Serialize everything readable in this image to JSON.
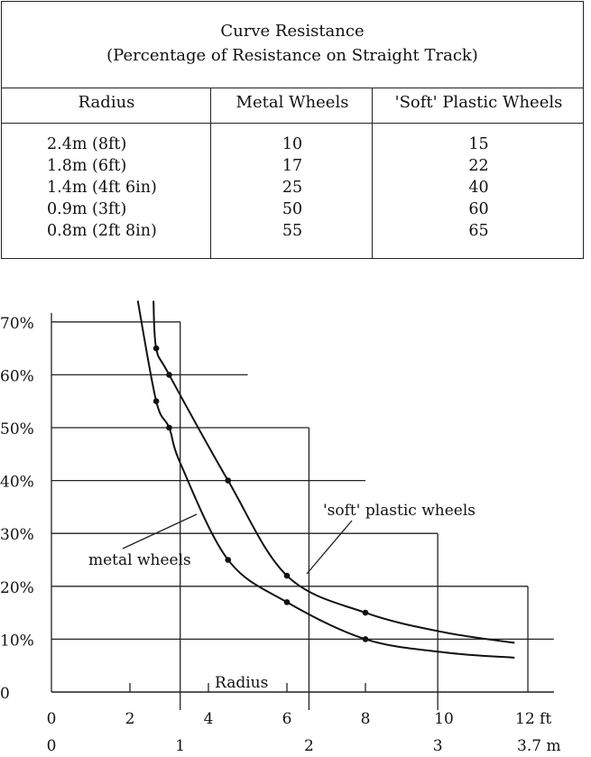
{
  "table": {
    "title_line1": "Curve Resistance",
    "title_line2": "(Percentage of Resistance on Straight Track)",
    "headers": [
      "Radius",
      "Metal Wheels",
      "'Soft' Plastic Wheels"
    ],
    "rows": [
      [
        "2.4m (8ft)",
        "10",
        "15"
      ],
      [
        "1.8m (6ft)",
        "17",
        "22"
      ],
      [
        "1.4m (4ft 6in)",
        "25",
        "40"
      ],
      [
        "0.9m (3ft)",
        "50",
        "60"
      ],
      [
        "0.8m (2ft 8in)",
        "55",
        "65"
      ]
    ]
  },
  "chart_data": {
    "type": "line",
    "title": "",
    "xlabel": "Radius",
    "ylabel": "",
    "xlim_ft": [
      0,
      12.8
    ],
    "ylim": [
      0,
      70
    ],
    "y_ticks": [
      "0",
      "10%",
      "20%",
      "30%",
      "40%",
      "50%",
      "60%",
      "70%"
    ],
    "y_tick_values": [
      0,
      10,
      20,
      30,
      40,
      50,
      60,
      70
    ],
    "x_ticks_ft": [
      "0",
      "2",
      "4",
      "6",
      "8",
      "10",
      "12 ft"
    ],
    "x_tick_values_ft": [
      0,
      2,
      4,
      6,
      8,
      10,
      12
    ],
    "x_ticks_m": [
      "0",
      "1",
      "2",
      "3",
      "3.7 m"
    ],
    "x_tick_values_m": [
      0,
      1,
      2,
      3,
      3.7
    ],
    "series": [
      {
        "name": "metal wheels",
        "points_ft": [
          [
            2.67,
            55
          ],
          [
            3,
            50
          ],
          [
            4.5,
            25
          ],
          [
            6,
            17
          ],
          [
            8,
            10
          ]
        ],
        "curve_ft": [
          [
            2.2,
            74
          ],
          [
            2.67,
            55
          ],
          [
            3,
            50
          ],
          [
            3.3,
            43
          ],
          [
            4.5,
            25
          ],
          [
            6,
            17
          ],
          [
            8,
            10
          ],
          [
            10,
            7.5
          ],
          [
            11.8,
            6.5
          ]
        ]
      },
      {
        "name": "'soft' plastic wheels",
        "points_ft": [
          [
            2.67,
            65
          ],
          [
            3,
            60
          ],
          [
            4.5,
            40
          ],
          [
            6,
            22
          ],
          [
            8,
            15
          ]
        ],
        "curve_ft": [
          [
            2.6,
            74
          ],
          [
            2.67,
            65
          ],
          [
            3,
            60
          ],
          [
            4.5,
            40
          ],
          [
            6,
            22
          ],
          [
            8,
            15
          ],
          [
            10,
            11.3
          ],
          [
            11.8,
            9.3
          ]
        ]
      }
    ],
    "grid_steps": [
      {
        "y": 70,
        "x_end_m": 1
      },
      {
        "y": 60,
        "x_end_ft": 5
      },
      {
        "y": 50,
        "x_end_m": 2
      },
      {
        "y": 40,
        "x_end_ft": 8
      },
      {
        "y": 30,
        "x_end_m": 3
      },
      {
        "y": 20,
        "x_end_m": 3.7
      },
      {
        "y": 10,
        "x_end_ft": 12.8
      }
    ]
  }
}
